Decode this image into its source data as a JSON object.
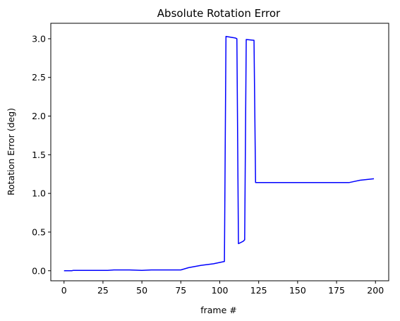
{
  "chart_data": {
    "type": "line",
    "title": "Absolute Rotation Error",
    "xlabel": "frame #",
    "ylabel": "Rotation Error (deg)",
    "xlim": [
      -8.5,
      208.5
    ],
    "ylim": [
      -0.13,
      3.2
    ],
    "xticks": [
      0,
      25,
      50,
      75,
      100,
      125,
      150,
      175,
      200
    ],
    "yticks": [
      0.0,
      0.5,
      1.0,
      1.5,
      2.0,
      2.5,
      3.0
    ],
    "xtick_labels": [
      "0",
      "25",
      "50",
      "75",
      "100",
      "125",
      "150",
      "175",
      "200"
    ],
    "ytick_labels": [
      "0.0",
      "0.5",
      "1.0",
      "1.5",
      "2.0",
      "2.5",
      "3.0"
    ],
    "grid": false,
    "series": [
      {
        "color": "#0000ff",
        "x": [
          0,
          5,
          6,
          28,
          32,
          42,
          50,
          56,
          62,
          70,
          75,
          80,
          88,
          96,
          103,
          104,
          110,
          111,
          112,
          115,
          116,
          117,
          122,
          123,
          130,
          134,
          140,
          150,
          155,
          160,
          170,
          183,
          190,
          199
        ],
        "y": [
          0.0,
          0.0,
          0.005,
          0.005,
          0.01,
          0.01,
          0.005,
          0.01,
          0.01,
          0.01,
          0.01,
          0.04,
          0.07,
          0.09,
          0.12,
          3.03,
          3.01,
          3.0,
          0.35,
          0.38,
          0.4,
          2.99,
          2.98,
          1.14,
          1.14,
          1.14,
          1.14,
          1.14,
          1.14,
          1.14,
          1.14,
          1.14,
          1.17,
          1.19
        ]
      }
    ]
  }
}
